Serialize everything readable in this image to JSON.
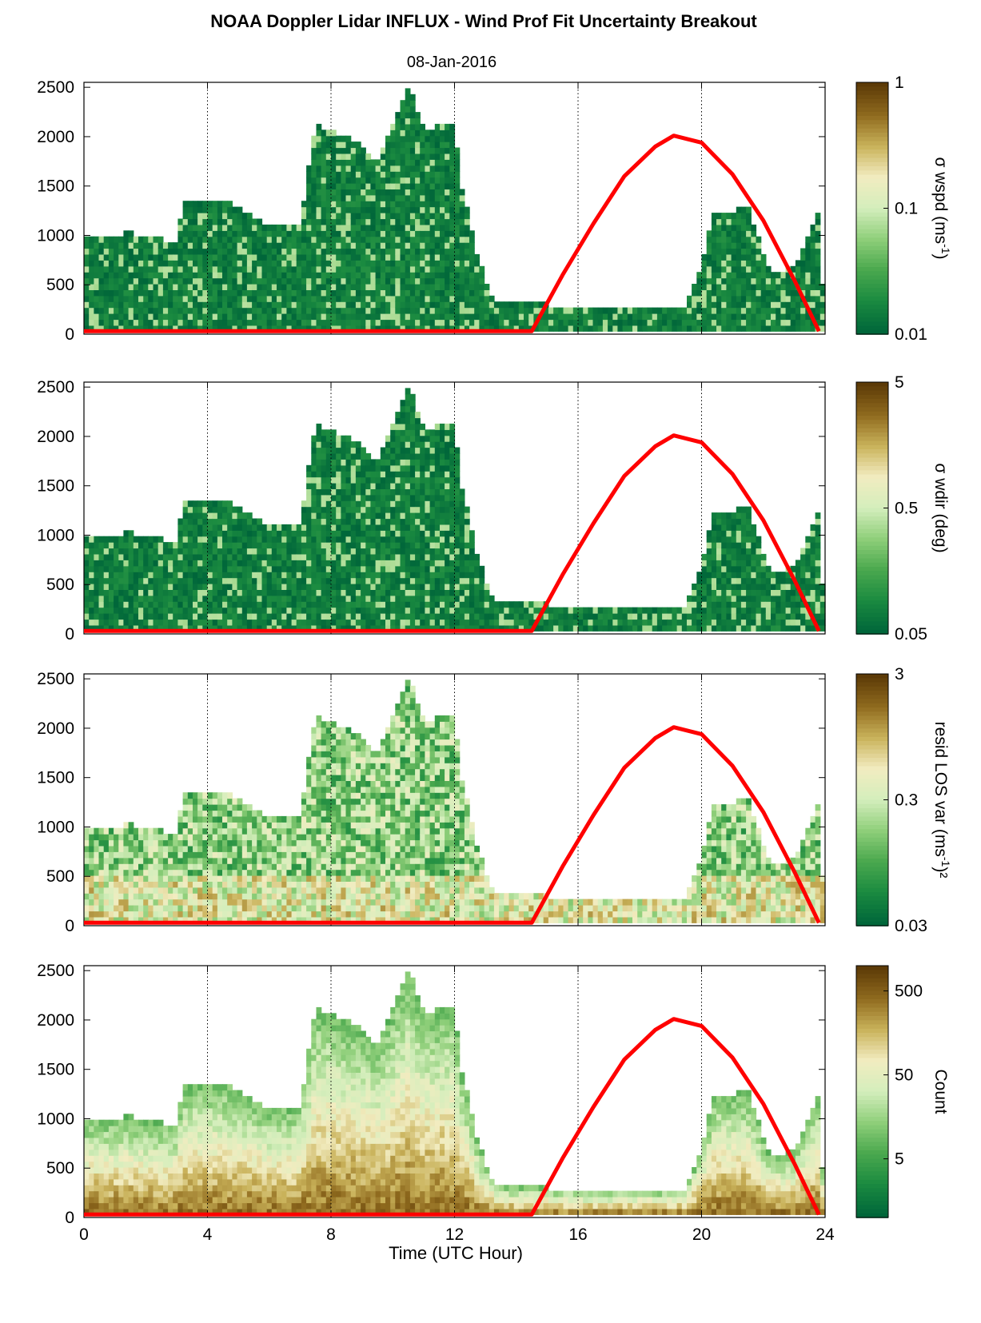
{
  "figure": {
    "title": "NOAA Doppler Lidar INFLUX - Wind Prof Fit Uncertainty Breakout",
    "date": "08-Jan-2016",
    "xlabel": "Time (UTC Hour)"
  },
  "chart_data": [
    {
      "type": "heatmap",
      "ylim": [
        0,
        2550
      ],
      "xlim": [
        0,
        24
      ],
      "yticks": [
        "0",
        "500",
        "1000",
        "1500",
        "2000",
        "2500"
      ],
      "xticks": [
        "0",
        "4",
        "8",
        "12",
        "16",
        "20",
        "24"
      ],
      "colorbar": {
        "label": "σ wspd (ms",
        "label_sup": "-1",
        "label_tail": ")",
        "ticks": [
          "1",
          "0.1",
          "0.01"
        ],
        "scale": "log",
        "range": [
          0.01,
          1
        ]
      },
      "data_profile": "wspd",
      "overlay_line": {
        "color": "#ff0000",
        "hours": [
          0,
          14.5,
          15.5,
          16.5,
          17.5,
          18.5,
          19.1,
          20,
          21,
          22,
          23,
          23.8
        ],
        "values": [
          30,
          30,
          600,
          1120,
          1600,
          1900,
          2010,
          1940,
          1620,
          1150,
          550,
          30
        ]
      }
    },
    {
      "type": "heatmap",
      "ylim": [
        0,
        2550
      ],
      "xlim": [
        0,
        24
      ],
      "yticks": [
        "0",
        "500",
        "1000",
        "1500",
        "2000",
        "2500"
      ],
      "xticks": [
        "0",
        "4",
        "8",
        "12",
        "16",
        "20",
        "24"
      ],
      "colorbar": {
        "label": "σ wdir (deg)",
        "label_sup": "",
        "label_tail": "",
        "ticks": [
          "5",
          "0.5",
          "0.05"
        ],
        "scale": "log",
        "range": [
          0.05,
          5
        ]
      },
      "data_profile": "wdir",
      "overlay_line": {
        "color": "#ff0000",
        "hours": [
          0,
          14.5,
          15.5,
          16.5,
          17.5,
          18.5,
          19.1,
          20,
          21,
          22,
          23,
          23.8
        ],
        "values": [
          30,
          30,
          600,
          1120,
          1600,
          1900,
          2010,
          1940,
          1620,
          1150,
          550,
          30
        ]
      }
    },
    {
      "type": "heatmap",
      "ylim": [
        0,
        2550
      ],
      "xlim": [
        0,
        24
      ],
      "yticks": [
        "0",
        "500",
        "1000",
        "1500",
        "2000",
        "2500"
      ],
      "xticks": [
        "0",
        "4",
        "8",
        "12",
        "16",
        "20",
        "24"
      ],
      "colorbar": {
        "label": "resid LOS var (ms",
        "label_sup": "-1",
        "label_tail": ")²",
        "ticks": [
          "3",
          "0.3",
          "0.03"
        ],
        "scale": "log",
        "range": [
          0.03,
          3
        ]
      },
      "data_profile": "resid",
      "overlay_line": {
        "color": "#ff0000",
        "hours": [
          0,
          14.5,
          15.5,
          16.5,
          17.5,
          18.5,
          19.1,
          20,
          21,
          22,
          23,
          23.8
        ],
        "values": [
          30,
          30,
          600,
          1120,
          1600,
          1900,
          2010,
          1940,
          1620,
          1150,
          550,
          30
        ]
      }
    },
    {
      "type": "heatmap",
      "ylim": [
        0,
        2550
      ],
      "xlim": [
        0,
        24
      ],
      "yticks": [
        "0",
        "500",
        "1000",
        "1500",
        "2000",
        "2500"
      ],
      "xticks": [
        "0",
        "4",
        "8",
        "12",
        "16",
        "20",
        "24"
      ],
      "colorbar": {
        "label": "Count",
        "label_sup": "",
        "label_tail": "",
        "ticks": [
          "500",
          "50",
          "5"
        ],
        "scale": "log",
        "range": [
          1,
          1000
        ]
      },
      "data_profile": "count",
      "overlay_line": {
        "color": "#ff0000",
        "hours": [
          0,
          14.5,
          15.5,
          16.5,
          17.5,
          18.5,
          19.1,
          20,
          21,
          22,
          23,
          23.8
        ],
        "values": [
          30,
          30,
          600,
          1120,
          1600,
          1900,
          2010,
          1940,
          1620,
          1150,
          550,
          30
        ]
      }
    }
  ],
  "colormap": [
    "#00663a",
    "#1a8a40",
    "#4aa84e",
    "#8fcf7a",
    "#d4eebc",
    "#f2ecc0",
    "#c9b25a",
    "#8f6a1e",
    "#5c3a07"
  ]
}
